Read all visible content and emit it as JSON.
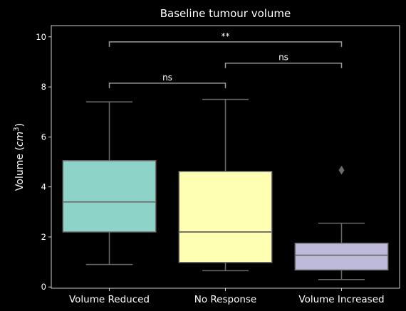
{
  "chart_data": {
    "type": "box",
    "title": "Baseline tumour volume",
    "xlabel": "",
    "ylabel": "Volume ($cm^3$)",
    "ylabel_parts": {
      "prefix": "Volume (",
      "italic": "cm",
      "sup": "3",
      "suffix": ")"
    },
    "ylim": [
      -0.05,
      10.45
    ],
    "yticks": [
      0,
      2,
      4,
      6,
      8,
      10
    ],
    "ytick_labels": [
      "0",
      "2",
      "4",
      "6",
      "8",
      "10"
    ],
    "grid": false,
    "boxes": [
      {
        "category": "Volume Reduced",
        "color": "#8DD3C7",
        "whisker_low": 0.9,
        "q1": 2.2,
        "median": 3.4,
        "q3": 5.05,
        "whisker_high": 7.4,
        "outliers": []
      },
      {
        "category": "No Response",
        "color": "#FFFFB3",
        "whisker_low": 0.65,
        "q1": 0.98,
        "median": 2.2,
        "q3": 4.62,
        "whisker_high": 7.5,
        "outliers": []
      },
      {
        "category": "Volume Increased",
        "color": "#BEBADA",
        "whisker_low": 0.3,
        "q1": 0.68,
        "median": 1.27,
        "q3": 1.75,
        "whisker_high": 2.55,
        "outliers": [
          4.67
        ]
      }
    ],
    "annotations": [
      {
        "from": 0,
        "to": 2,
        "y": 9.8,
        "label": "**"
      },
      {
        "from": 1,
        "to": 2,
        "y": 8.95,
        "label": "ns"
      },
      {
        "from": 0,
        "to": 1,
        "y": 8.15,
        "label": "ns"
      }
    ],
    "colors": {
      "background": "#000000",
      "line": "#6b6b6b",
      "bracket": "#9a9a9a",
      "text": "#ffffff"
    }
  }
}
